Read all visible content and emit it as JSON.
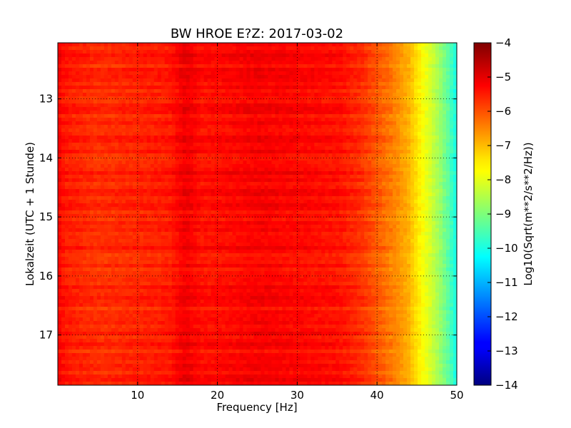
{
  "chart_data": {
    "type": "heatmap",
    "title": "BW HROE E?Z: 2017-03-02",
    "xlabel": "Frequency [Hz]",
    "ylabel": "Lokalzeit (UTC + 1 Stunde)",
    "xlim": [
      0,
      50
    ],
    "ylim": [
      17.85,
      12.05
    ],
    "x_ticks": [
      "10",
      "20",
      "30",
      "40",
      "50"
    ],
    "y_ticks": [
      "13",
      "14",
      "15",
      "16",
      "17"
    ],
    "x_tick_values": [
      10,
      20,
      30,
      40,
      50
    ],
    "y_tick_values": [
      13,
      14,
      15,
      16,
      17
    ],
    "grid": true,
    "colormap": "jet",
    "colorbar": {
      "label": "Log10(Sqrt(m**2/s**2/Hz))",
      "range": [
        -14,
        -4
      ],
      "ticks": [
        "−4",
        "−5",
        "−6",
        "−7",
        "−8",
        "−9",
        "−10",
        "−11",
        "−12",
        "−13",
        "−14"
      ],
      "tick_values": [
        -4,
        -5,
        -6,
        -7,
        -8,
        -9,
        -10,
        -11,
        -12,
        -13,
        -14
      ]
    },
    "spectrum_profile": {
      "frequency_hz": [
        0,
        1,
        5,
        10,
        14,
        16,
        18,
        22,
        25,
        30,
        35,
        38,
        40,
        42,
        44,
        45,
        46,
        47,
        48,
        49,
        50
      ],
      "value": [
        -5.2,
        -5.5,
        -5.7,
        -5.6,
        -5.5,
        -5.1,
        -5.4,
        -5.3,
        -5.2,
        -5.3,
        -5.4,
        -5.7,
        -6.1,
        -6.5,
        -7.0,
        -7.5,
        -7.9,
        -8.3,
        -8.8,
        -9.4,
        -10.1
      ]
    }
  }
}
